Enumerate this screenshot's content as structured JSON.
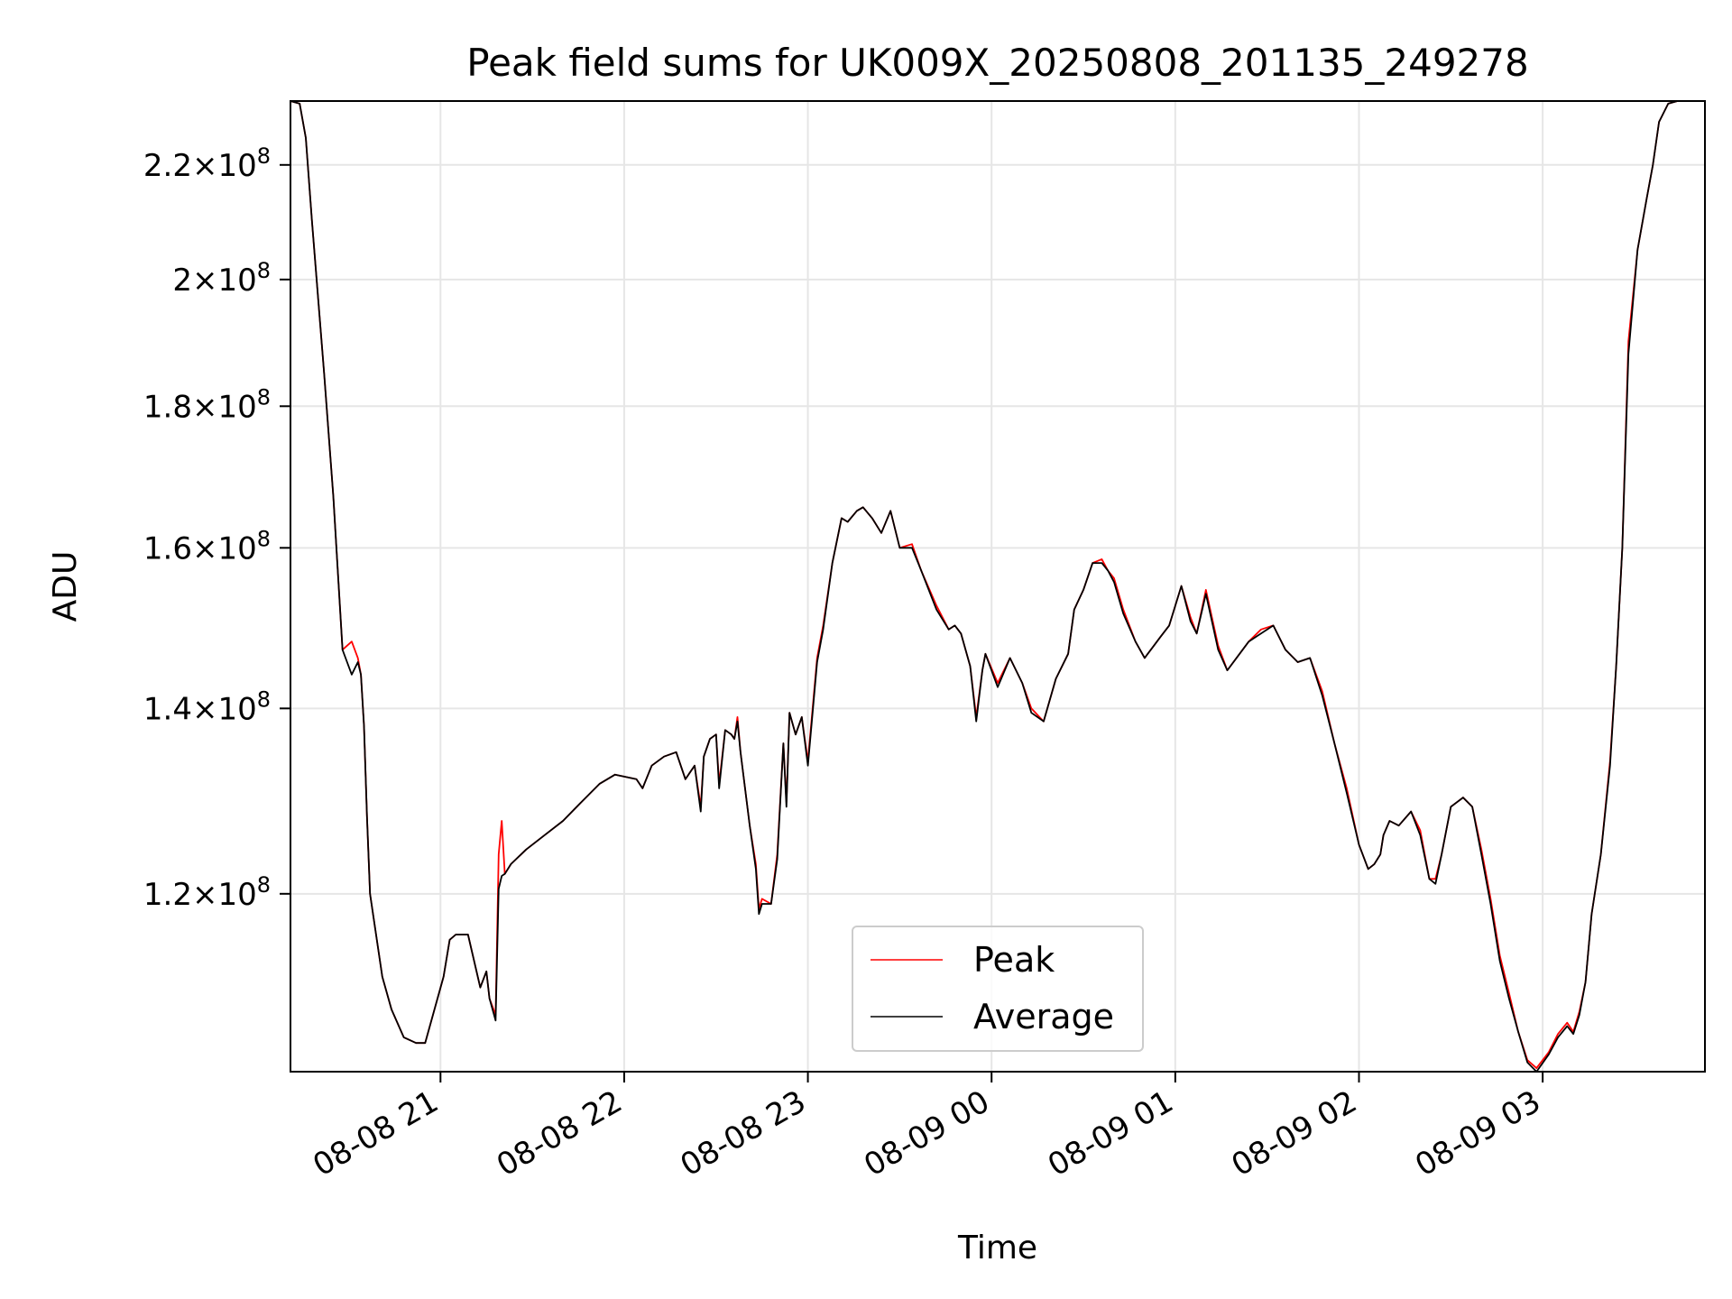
{
  "chart_data": {
    "type": "line",
    "title": "Peak field sums for UK009X_20250808_201135_249278",
    "xlabel": "Time",
    "ylabel": "ADU",
    "y_scale": "log",
    "ylim": [
      103500000,
      232000000
    ],
    "xlim": [
      "2025-08-08 20:11",
      "2025-08-09 03:53"
    ],
    "grid": true,
    "legend_position": "lower center",
    "x_ticks": [
      {
        "t": "2025-08-08 21:00",
        "label": "08-08 21"
      },
      {
        "t": "2025-08-08 22:00",
        "label": "08-08 22"
      },
      {
        "t": "2025-08-08 23:00",
        "label": "08-08 23"
      },
      {
        "t": "2025-08-09 00:00",
        "label": "08-09 00"
      },
      {
        "t": "2025-08-09 01:00",
        "label": "08-09 01"
      },
      {
        "t": "2025-08-09 02:00",
        "label": "08-09 02"
      },
      {
        "t": "2025-08-09 03:00",
        "label": "08-09 03"
      }
    ],
    "y_ticks": [
      {
        "value": 120000000,
        "mantissa": "1.2",
        "exp": "8"
      },
      {
        "value": 140000000,
        "mantissa": "1.4",
        "exp": "8"
      },
      {
        "value": 160000000,
        "mantissa": "1.6",
        "exp": "8"
      },
      {
        "value": 180000000,
        "mantissa": "1.8",
        "exp": "8"
      },
      {
        "value": 200000000,
        "mantissa": "2",
        "exp": "8"
      },
      {
        "value": 220000000,
        "mantissa": "2.2",
        "exp": "8"
      }
    ],
    "times": [
      "2025-08-08 20:11",
      "2025-08-08 20:14",
      "2025-08-08 20:16",
      "2025-08-08 20:18",
      "2025-08-08 20:22",
      "2025-08-08 20:25",
      "2025-08-08 20:28",
      "2025-08-08 20:31",
      "2025-08-08 20:33",
      "2025-08-08 20:34",
      "2025-08-08 20:35",
      "2025-08-08 20:36",
      "2025-08-08 20:37",
      "2025-08-08 20:41",
      "2025-08-08 20:44",
      "2025-08-08 20:48",
      "2025-08-08 20:52",
      "2025-08-08 20:55",
      "2025-08-08 21:01",
      "2025-08-08 21:03",
      "2025-08-08 21:05",
      "2025-08-08 21:09",
      "2025-08-08 21:13",
      "2025-08-08 21:15",
      "2025-08-08 21:16",
      "2025-08-08 21:18",
      "2025-08-08 21:19",
      "2025-08-08 21:20",
      "2025-08-08 21:21",
      "2025-08-08 21:23",
      "2025-08-08 21:28",
      "2025-08-08 21:34",
      "2025-08-08 21:40",
      "2025-08-08 21:46",
      "2025-08-08 21:52",
      "2025-08-08 21:57",
      "2025-08-08 22:04",
      "2025-08-08 22:06",
      "2025-08-08 22:09",
      "2025-08-08 22:13",
      "2025-08-08 22:17",
      "2025-08-08 22:20",
      "2025-08-08 22:23",
      "2025-08-08 22:25",
      "2025-08-08 22:26",
      "2025-08-08 22:28",
      "2025-08-08 22:30",
      "2025-08-08 22:31",
      "2025-08-08 22:33",
      "2025-08-08 22:35",
      "2025-08-08 22:36",
      "2025-08-08 22:37",
      "2025-08-08 22:38",
      "2025-08-08 22:41",
      "2025-08-08 22:43",
      "2025-08-08 22:44",
      "2025-08-08 22:45",
      "2025-08-08 22:48",
      "2025-08-08 22:50",
      "2025-08-08 22:52",
      "2025-08-08 22:53",
      "2025-08-08 22:54",
      "2025-08-08 22:56",
      "2025-08-08 22:58",
      "2025-08-08 23:00",
      "2025-08-08 23:03",
      "2025-08-08 23:05",
      "2025-08-08 23:08",
      "2025-08-08 23:11",
      "2025-08-08 23:13",
      "2025-08-08 23:16",
      "2025-08-08 23:18",
      "2025-08-08 23:21",
      "2025-08-08 23:24",
      "2025-08-08 23:27",
      "2025-08-08 23:30",
      "2025-08-08 23:34",
      "2025-08-08 23:37",
      "2025-08-08 23:42",
      "2025-08-08 23:46",
      "2025-08-08 23:48",
      "2025-08-08 23:50",
      "2025-08-08 23:53",
      "2025-08-08 23:55",
      "2025-08-08 23:57",
      "2025-08-08 23:58",
      "2025-08-09 00:02",
      "2025-08-09 00:06",
      "2025-08-09 00:10",
      "2025-08-09 00:13",
      "2025-08-09 00:17",
      "2025-08-09 00:21",
      "2025-08-09 00:25",
      "2025-08-09 00:27",
      "2025-08-09 00:30",
      "2025-08-09 00:33",
      "2025-08-09 00:36",
      "2025-08-09 00:38",
      "2025-08-09 00:40",
      "2025-08-09 00:43",
      "2025-08-09 00:47",
      "2025-08-09 00:50",
      "2025-08-09 00:53",
      "2025-08-09 00:55",
      "2025-08-09 00:58",
      "2025-08-09 01:02",
      "2025-08-09 01:05",
      "2025-08-09 01:07",
      "2025-08-09 01:10",
      "2025-08-09 01:14",
      "2025-08-09 01:17",
      "2025-08-09 01:20",
      "2025-08-09 01:24",
      "2025-08-09 01:28",
      "2025-08-09 01:32",
      "2025-08-09 01:36",
      "2025-08-09 01:40",
      "2025-08-09 01:44",
      "2025-08-09 01:48",
      "2025-08-09 01:52",
      "2025-08-09 01:56",
      "2025-08-09 02:00",
      "2025-08-09 02:03",
      "2025-08-09 02:05",
      "2025-08-09 02:07",
      "2025-08-09 02:08",
      "2025-08-09 02:10",
      "2025-08-09 02:13",
      "2025-08-09 02:17",
      "2025-08-09 02:20",
      "2025-08-09 02:23",
      "2025-08-09 02:25",
      "2025-08-09 02:27",
      "2025-08-09 02:30",
      "2025-08-09 02:34",
      "2025-08-09 02:37",
      "2025-08-09 02:40",
      "2025-08-09 02:43",
      "2025-08-09 02:46",
      "2025-08-09 02:49",
      "2025-08-09 02:52",
      "2025-08-09 02:55",
      "2025-08-09 02:58",
      "2025-08-09 03:02",
      "2025-08-09 03:05",
      "2025-08-09 03:08",
      "2025-08-09 03:10",
      "2025-08-09 03:12",
      "2025-08-09 03:14",
      "2025-08-09 03:16",
      "2025-08-09 03:19",
      "2025-08-09 03:22",
      "2025-08-09 03:24",
      "2025-08-09 03:26",
      "2025-08-09 03:28",
      "2025-08-09 03:31",
      "2025-08-09 03:34",
      "2025-08-09 03:36",
      "2025-08-09 03:38",
      "2025-08-09 03:41",
      "2025-08-09 03:44",
      "2025-08-09 03:47",
      "2025-08-09 03:53"
    ],
    "series": [
      {
        "name": "Peak",
        "color": "#ff0000",
        "values": [
          232000000,
          231500000,
          225000000,
          210000000,
          185000000,
          167000000,
          147000000,
          148000000,
          146000000,
          144000000,
          138000000,
          128000000,
          120000000,
          112000000,
          109000000,
          106500000,
          106000000,
          106000000,
          112000000,
          115500000,
          116000000,
          116000000,
          111000000,
          112500000,
          110000000,
          108500000,
          124000000,
          127500000,
          122000000,
          123000000,
          124500000,
          126000000,
          127500000,
          129500000,
          131500000,
          132500000,
          132000000,
          131000000,
          133500000,
          134500000,
          135000000,
          132000000,
          133500000,
          129000000,
          134500000,
          136500000,
          137000000,
          131500000,
          137500000,
          137000000,
          136500000,
          139000000,
          135000000,
          127000000,
          123000000,
          118500000,
          119500000,
          119000000,
          124000000,
          136000000,
          129500000,
          139500000,
          137000000,
          139000000,
          134000000,
          146000000,
          150000000,
          158000000,
          164000000,
          163500000,
          165000000,
          165500000,
          164000000,
          162000000,
          165000000,
          160000000,
          160500000,
          157000000,
          152500000,
          149500000,
          150000000,
          149000000,
          145000000,
          139000000,
          144500000,
          146500000,
          143000000,
          146000000,
          143000000,
          140000000,
          138500000,
          143500000,
          146500000,
          152000000,
          154500000,
          158000000,
          158500000,
          157000000,
          156000000,
          152000000,
          148000000,
          146000000,
          147500000,
          148500000,
          150000000,
          155000000,
          151000000,
          149000000,
          154500000,
          147500000,
          144500000,
          146000000,
          148000000,
          149500000,
          150000000,
          147000000,
          145500000,
          146000000,
          142000000,
          136000000,
          131000000,
          125000000,
          122500000,
          123000000,
          124000000,
          126000000,
          127500000,
          127000000,
          128500000,
          126500000,
          121500000,
          121500000,
          124000000,
          129000000,
          130000000,
          129000000,
          124500000,
          119500000,
          114000000,
          110500000,
          107000000,
          104500000,
          103800000,
          105200000,
          106800000,
          107800000,
          107000000,
          108800000,
          111500000,
          118000000,
          124000000,
          134000000,
          145000000,
          160000000,
          190000000,
          205000000,
          214000000,
          220000000,
          228000000,
          231500000,
          232000000,
          232000000,
          232000000
        ]
      },
      {
        "name": "Average",
        "color": "#000000",
        "values": [
          232000000,
          231500000,
          225000000,
          210000000,
          185000000,
          167000000,
          147000000,
          144000000,
          145500000,
          144000000,
          138000000,
          128000000,
          120000000,
          112000000,
          109000000,
          106500000,
          106000000,
          106000000,
          112000000,
          115500000,
          116000000,
          116000000,
          111000000,
          112500000,
          110000000,
          108000000,
          120500000,
          121800000,
          122000000,
          123000000,
          124500000,
          126000000,
          127500000,
          129500000,
          131500000,
          132500000,
          132000000,
          131000000,
          133500000,
          134500000,
          135000000,
          132000000,
          133500000,
          128500000,
          134500000,
          136500000,
          137000000,
          131000000,
          137500000,
          137000000,
          136500000,
          138500000,
          135000000,
          127000000,
          122500000,
          118000000,
          119000000,
          119000000,
          123500000,
          136000000,
          129000000,
          139500000,
          137000000,
          139000000,
          133500000,
          145500000,
          149500000,
          158000000,
          164000000,
          163500000,
          165000000,
          165500000,
          164000000,
          162000000,
          165000000,
          160000000,
          160000000,
          157000000,
          152000000,
          149500000,
          150000000,
          149000000,
          145000000,
          138500000,
          144500000,
          146500000,
          142500000,
          146000000,
          143000000,
          139500000,
          138500000,
          143500000,
          146500000,
          152000000,
          154500000,
          158000000,
          158000000,
          157000000,
          155500000,
          151500000,
          148000000,
          146000000,
          147500000,
          148500000,
          150000000,
          155000000,
          150500000,
          149000000,
          154000000,
          147000000,
          144500000,
          146000000,
          148000000,
          149000000,
          150000000,
          147000000,
          145500000,
          146000000,
          141500000,
          136000000,
          130500000,
          125000000,
          122500000,
          123000000,
          124000000,
          126000000,
          127500000,
          127000000,
          128500000,
          126000000,
          121500000,
          121000000,
          124000000,
          129000000,
          130000000,
          129000000,
          124000000,
          119000000,
          113500000,
          110000000,
          107000000,
          104300000,
          103500000,
          105000000,
          106500000,
          107500000,
          106800000,
          108500000,
          111500000,
          118000000,
          124000000,
          133500000,
          145000000,
          160000000,
          188000000,
          205000000,
          214000000,
          220000000,
          228000000,
          231500000,
          232000000,
          232000000,
          232000000
        ]
      }
    ]
  }
}
